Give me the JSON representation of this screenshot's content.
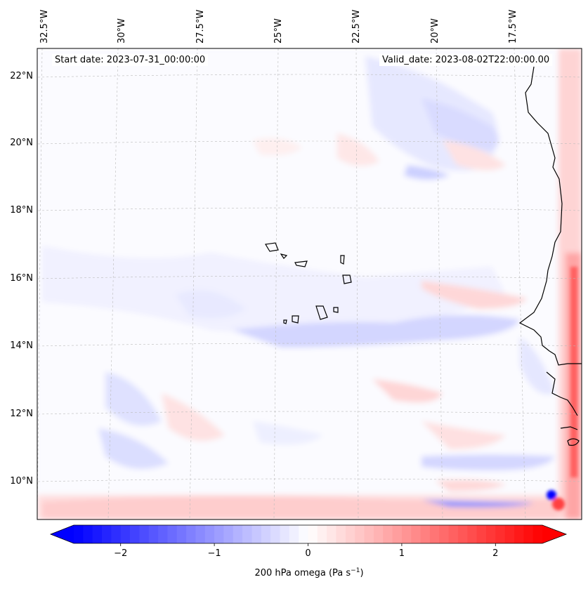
{
  "map": {
    "start_date": "Start date: 2023-07-31_00:00:00",
    "valid_date": "Valid_date: 2023-08-02T22:00:00.00",
    "lon_labels": [
      "32.5°W",
      "30°W",
      "27.5°W",
      "25°W",
      "22.5°W",
      "20°W",
      "17.5°W"
    ],
    "lat_labels": [
      "22°N",
      "20°N",
      "18°N",
      "16°N",
      "14°N",
      "12°N",
      "10°N"
    ],
    "variable": "200 hPa omega",
    "units_prefix": "(Pa s",
    "units_sup": "−1",
    "units_suffix": ")",
    "colormap": "bwr",
    "colors": {
      "negative": "#0000ff",
      "zero": "#ffffff",
      "positive": "#ff0000",
      "coast": "#000000"
    }
  },
  "colorbar": {
    "vmin": -2.5,
    "vmax": 2.5,
    "extend": "both",
    "tick_values": [
      -2,
      -1,
      0,
      1,
      2
    ],
    "tick_labels": [
      "−2",
      "−1",
      "0",
      "1",
      "2"
    ]
  }
}
